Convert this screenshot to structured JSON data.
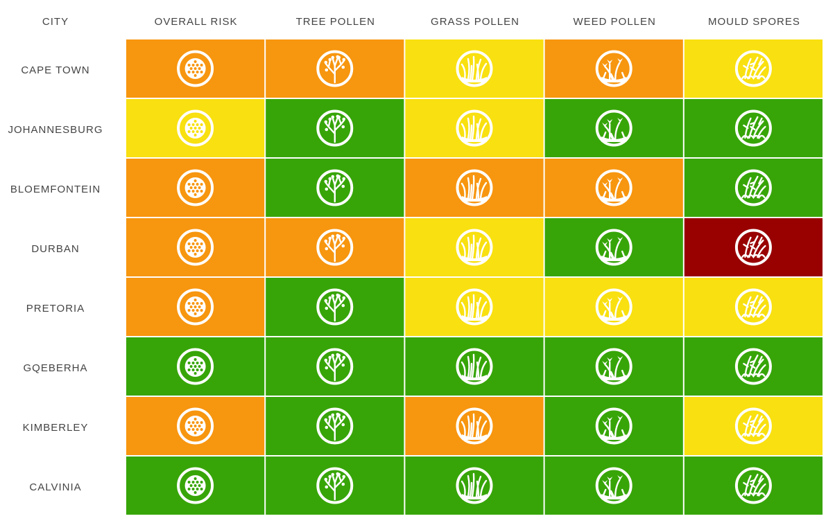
{
  "table": {
    "headers": [
      "CITY",
      "OVERALL RISK",
      "TREE POLLEN",
      "GRASS POLLEN",
      "WEED POLLEN",
      "MOULD SPORES"
    ],
    "rows": [
      {
        "city": "CAPE TOWN",
        "cells": [
          "#f7960f",
          "#f7960f",
          "#f9e010",
          "#f7960f",
          "#f9e010"
        ]
      },
      {
        "city": "JOHANNESBURG",
        "cells": [
          "#f9e010",
          "#37a508",
          "#f9e010",
          "#37a508",
          "#37a508"
        ]
      },
      {
        "city": "BLOEMFONTEIN",
        "cells": [
          "#f7960f",
          "#37a508",
          "#f7960f",
          "#f7960f",
          "#37a508"
        ]
      },
      {
        "city": "DURBAN",
        "cells": [
          "#f7960f",
          "#f7960f",
          "#f9e010",
          "#37a508",
          "#990000"
        ]
      },
      {
        "city": "PRETORIA",
        "cells": [
          "#f7960f",
          "#37a508",
          "#f9e010",
          "#f9e010",
          "#f9e010"
        ]
      },
      {
        "city": "GQEBERHA",
        "cells": [
          "#37a508",
          "#37a508",
          "#37a508",
          "#37a508",
          "#37a508"
        ]
      },
      {
        "city": "KIMBERLEY",
        "cells": [
          "#f7960f",
          "#37a508",
          "#f7960f",
          "#37a508",
          "#f9e010"
        ]
      },
      {
        "city": "CALVINIA",
        "cells": [
          "#37a508",
          "#37a508",
          "#37a508",
          "#37a508",
          "#37a508"
        ]
      }
    ]
  }
}
